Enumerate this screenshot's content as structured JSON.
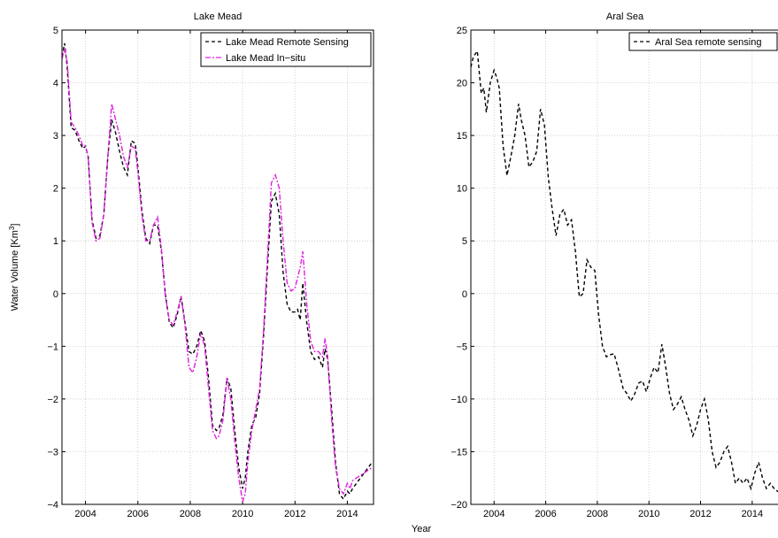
{
  "figure": {
    "shared_xlabel": "Year",
    "shared_ylabel": "Water Volume  [Km",
    "shared_ylabel_sup": "3",
    "shared_ylabel_end": "]"
  },
  "chart_data": [
    {
      "type": "line",
      "title": "Lake Mead",
      "xlabel": "",
      "ylabel": "",
      "xlim": [
        2003.1,
        2015.0
      ],
      "ylim": [
        -4,
        5
      ],
      "xticks": [
        2004,
        2006,
        2008,
        2010,
        2012,
        2014
      ],
      "yticks": [
        -4,
        -3,
        -2,
        -1,
        0,
        1,
        2,
        3,
        4,
        5
      ],
      "grid": true,
      "legend": "top-right",
      "series": [
        {
          "name": "Lake Mead Remote Sensing",
          "color": "#000000",
          "dash": "dashed",
          "x": [
            2003.1,
            2003.2,
            2003.3,
            2003.45,
            2003.6,
            2003.75,
            2003.9,
            2004.0,
            2004.1,
            2004.25,
            2004.4,
            2004.55,
            2004.7,
            2004.85,
            2005.0,
            2005.15,
            2005.3,
            2005.45,
            2005.6,
            2005.75,
            2005.9,
            2006.0,
            2006.15,
            2006.3,
            2006.45,
            2006.6,
            2006.75,
            2006.9,
            2007.05,
            2007.2,
            2007.35,
            2007.5,
            2007.65,
            2007.8,
            2007.95,
            2008.1,
            2008.25,
            2008.4,
            2008.55,
            2008.7,
            2008.85,
            2009.0,
            2009.1,
            2009.25,
            2009.4,
            2009.55,
            2009.7,
            2009.85,
            2010.0,
            2010.1,
            2010.2,
            2010.35,
            2010.5,
            2010.65,
            2010.8,
            2010.95,
            2011.1,
            2011.25,
            2011.4,
            2011.55,
            2011.7,
            2011.85,
            2012.0,
            2012.1,
            2012.2,
            2012.3,
            2012.45,
            2012.6,
            2012.75,
            2012.9,
            2013.05,
            2013.15,
            2013.25,
            2013.4,
            2013.55,
            2013.7,
            2013.85,
            2014.0,
            2014.1,
            2014.2,
            2014.35,
            2014.5,
            2014.65,
            2014.8,
            2014.95
          ],
          "values": [
            4.5,
            4.75,
            4.3,
            3.15,
            3.1,
            2.9,
            2.75,
            2.8,
            2.6,
            1.4,
            1.05,
            1.1,
            1.5,
            2.6,
            3.3,
            3.05,
            2.7,
            2.4,
            2.25,
            2.9,
            2.85,
            2.4,
            1.6,
            1.05,
            0.95,
            1.3,
            1.3,
            0.8,
            0.0,
            -0.55,
            -0.65,
            -0.4,
            -0.05,
            -0.55,
            -1.1,
            -1.15,
            -1.0,
            -0.7,
            -0.9,
            -1.6,
            -2.5,
            -2.6,
            -2.55,
            -2.3,
            -1.6,
            -1.8,
            -2.6,
            -3.3,
            -3.7,
            -3.5,
            -3.0,
            -2.5,
            -2.35,
            -1.9,
            -0.8,
            0.5,
            1.75,
            1.9,
            1.5,
            0.4,
            -0.2,
            -0.35,
            -0.35,
            -0.3,
            -0.5,
            0.2,
            -0.55,
            -1.1,
            -1.25,
            -1.2,
            -1.4,
            -1.05,
            -1.25,
            -2.2,
            -3.2,
            -3.8,
            -3.9,
            -3.75,
            -3.8,
            -3.7,
            -3.6,
            -3.5,
            -3.4,
            -3.3,
            -3.2
          ]
        },
        {
          "name": "Lake Mead In−situ",
          "color": "#e020e0",
          "dash": "dashdot",
          "x": [
            2003.1,
            2003.2,
            2003.3,
            2003.45,
            2003.6,
            2003.75,
            2003.9,
            2004.0,
            2004.1,
            2004.25,
            2004.4,
            2004.55,
            2004.7,
            2004.85,
            2005.0,
            2005.15,
            2005.3,
            2005.45,
            2005.6,
            2005.75,
            2005.9,
            2006.0,
            2006.15,
            2006.3,
            2006.45,
            2006.6,
            2006.75,
            2006.9,
            2007.05,
            2007.2,
            2007.35,
            2007.5,
            2007.65,
            2007.8,
            2007.95,
            2008.1,
            2008.25,
            2008.4,
            2008.55,
            2008.7,
            2008.85,
            2009.0,
            2009.1,
            2009.25,
            2009.4,
            2009.55,
            2009.7,
            2009.85,
            2010.0,
            2010.1,
            2010.2,
            2010.35,
            2010.5,
            2010.65,
            2010.8,
            2010.95,
            2011.1,
            2011.25,
            2011.4,
            2011.55,
            2011.7,
            2011.85,
            2012.0,
            2012.1,
            2012.2,
            2012.3,
            2012.45,
            2012.6,
            2012.75,
            2012.9,
            2013.05,
            2013.15,
            2013.25,
            2013.4,
            2013.55,
            2013.7,
            2013.85,
            2014.0,
            2014.1,
            2014.2,
            2014.35,
            2014.5,
            2014.65,
            2014.8,
            2014.95
          ],
          "values": [
            4.45,
            4.65,
            4.4,
            3.25,
            3.15,
            3.0,
            2.8,
            2.8,
            2.6,
            1.35,
            1.0,
            1.05,
            1.5,
            2.6,
            3.6,
            3.3,
            3.0,
            2.6,
            2.4,
            2.8,
            2.75,
            2.3,
            1.5,
            1.0,
            1.0,
            1.3,
            1.45,
            0.85,
            -0.05,
            -0.5,
            -0.6,
            -0.35,
            -0.05,
            -0.6,
            -1.4,
            -1.5,
            -1.2,
            -0.75,
            -1.0,
            -1.8,
            -2.6,
            -2.75,
            -2.7,
            -2.4,
            -1.6,
            -2.0,
            -2.8,
            -3.5,
            -3.95,
            -3.8,
            -3.2,
            -2.6,
            -2.2,
            -1.8,
            -0.7,
            0.7,
            2.1,
            2.25,
            2.0,
            1.0,
            0.2,
            0.05,
            0.1,
            0.3,
            0.5,
            0.8,
            -0.2,
            -0.9,
            -1.1,
            -1.1,
            -1.2,
            -0.85,
            -1.2,
            -2.4,
            -3.3,
            -3.7,
            -3.8,
            -3.6,
            -3.7,
            -3.55,
            -3.5,
            -3.45,
            -3.4,
            -3.35,
            -3.3
          ]
        }
      ]
    },
    {
      "type": "line",
      "title": "Aral Sea",
      "xlabel": "",
      "ylabel": "",
      "xlim": [
        2003.1,
        2015.0
      ],
      "ylim": [
        -20,
        25
      ],
      "xticks": [
        2004,
        2006,
        2008,
        2010,
        2012,
        2014
      ],
      "yticks": [
        -20,
        -15,
        -10,
        -5,
        0,
        5,
        10,
        15,
        20,
        25
      ],
      "grid": true,
      "legend": "top-right",
      "series": [
        {
          "name": "Aral Sea remote sensing",
          "color": "#000000",
          "dash": "dashed",
          "x": [
            2003.1,
            2003.2,
            2003.35,
            2003.5,
            2003.6,
            2003.7,
            2003.85,
            2004.0,
            2004.1,
            2004.2,
            2004.35,
            2004.5,
            2004.65,
            2004.8,
            2004.95,
            2005.05,
            2005.2,
            2005.35,
            2005.5,
            2005.65,
            2005.8,
            2005.95,
            2006.1,
            2006.25,
            2006.4,
            2006.55,
            2006.7,
            2006.85,
            2007.0,
            2007.15,
            2007.3,
            2007.45,
            2007.6,
            2007.75,
            2007.9,
            2008.05,
            2008.2,
            2008.35,
            2008.5,
            2008.65,
            2008.8,
            2009.0,
            2009.15,
            2009.3,
            2009.45,
            2009.6,
            2009.75,
            2009.9,
            2010.05,
            2010.2,
            2010.35,
            2010.5,
            2010.65,
            2010.8,
            2010.95,
            2011.1,
            2011.25,
            2011.4,
            2011.55,
            2011.7,
            2011.85,
            2012.0,
            2012.15,
            2012.3,
            2012.45,
            2012.6,
            2012.75,
            2012.9,
            2013.05,
            2013.2,
            2013.35,
            2013.5,
            2013.65,
            2013.8,
            2013.95,
            2014.1,
            2014.25,
            2014.4,
            2014.55,
            2014.7,
            2014.85,
            2015.0
          ],
          "values": [
            21.5,
            22.5,
            23.0,
            19.0,
            19.5,
            17.2,
            20.0,
            21.2,
            20.5,
            19.5,
            14.0,
            11.2,
            13.0,
            15.0,
            18.0,
            16.5,
            15.0,
            12.0,
            12.5,
            13.5,
            17.5,
            16.0,
            11.0,
            8.0,
            5.5,
            7.5,
            8.0,
            6.5,
            7.0,
            4.0,
            -0.3,
            0.0,
            3.2,
            2.5,
            2.2,
            -2.0,
            -5.0,
            -6.0,
            -5.8,
            -5.7,
            -7.0,
            -9.0,
            -9.5,
            -10.2,
            -9.5,
            -8.5,
            -8.3,
            -9.3,
            -8.0,
            -7.0,
            -7.5,
            -4.8,
            -7.0,
            -9.5,
            -11.0,
            -10.5,
            -9.8,
            -11.0,
            -12.0,
            -13.5,
            -12.5,
            -11.0,
            -10.0,
            -12.0,
            -15.0,
            -16.5,
            -16.0,
            -15.0,
            -14.5,
            -16.0,
            -18.0,
            -17.5,
            -18.0,
            -17.5,
            -18.5,
            -17.0,
            -16.0,
            -17.5,
            -18.5,
            -18.0,
            -18.5,
            -18.8
          ]
        }
      ]
    }
  ]
}
